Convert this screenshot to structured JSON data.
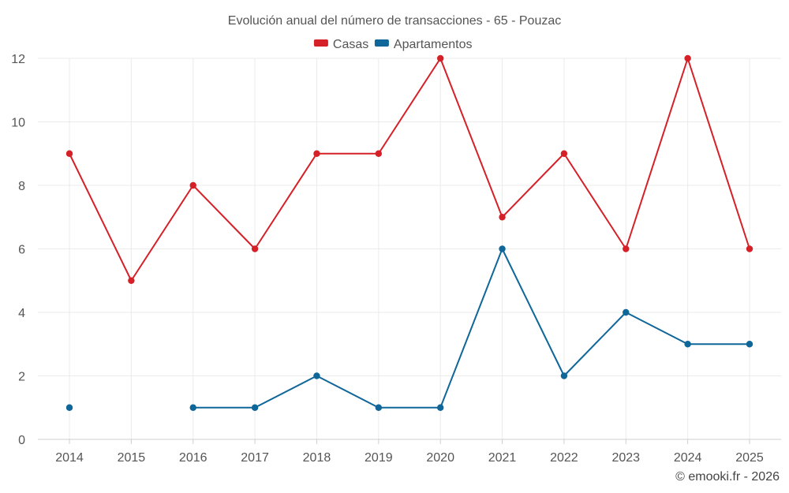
{
  "chart_data": {
    "type": "line",
    "title": "Evolución anual del número de transacciones - 65 - Pouzac",
    "xlabel": "",
    "ylabel": "",
    "categories": [
      "2014",
      "2015",
      "2016",
      "2017",
      "2018",
      "2019",
      "2020",
      "2021",
      "2022",
      "2023",
      "2024",
      "2025"
    ],
    "ylim": [
      0,
      12
    ],
    "yticks": [
      0,
      2,
      4,
      6,
      8,
      10,
      12
    ],
    "grid": true,
    "legend_position": "top-center",
    "series": [
      {
        "name": "Casas",
        "color": "#d62027",
        "values": [
          9,
          5,
          8,
          6,
          9,
          9,
          12,
          7,
          9,
          6,
          12,
          6
        ]
      },
      {
        "name": "Apartamentos",
        "color": "#0e6699",
        "values": [
          1,
          null,
          1,
          1,
          2,
          1,
          1,
          6,
          2,
          4,
          3,
          3
        ]
      }
    ],
    "credit": "© emooki.fr - 2026"
  }
}
